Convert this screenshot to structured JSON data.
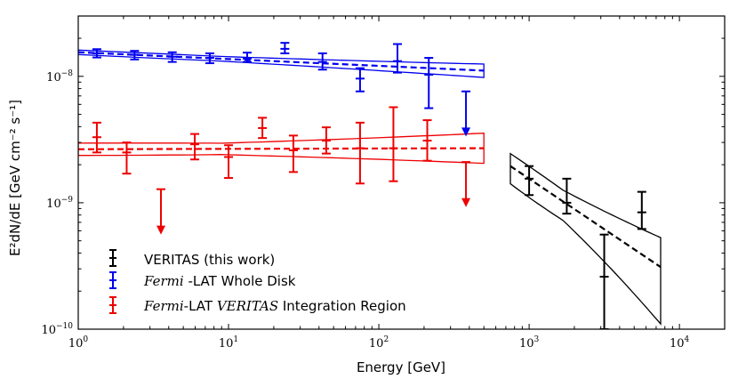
{
  "chart_data": {
    "type": "scatter",
    "xscale": "log",
    "yscale": "log",
    "xlim": [
      1,
      20000
    ],
    "ylim": [
      1e-10,
      3e-08
    ],
    "xlabel": "Energy [GeV]",
    "ylabel": "E²dN/dE [GeV cm⁻² s⁻¹]",
    "x_ticks": [
      {
        "value": 1,
        "base": "10",
        "exp": "0"
      },
      {
        "value": 10,
        "base": "10",
        "exp": "1"
      },
      {
        "value": 100,
        "base": "10",
        "exp": "2"
      },
      {
        "value": 1000,
        "base": "10",
        "exp": "3"
      },
      {
        "value": 10000,
        "base": "10",
        "exp": "4"
      }
    ],
    "y_ticks": [
      {
        "value": 1e-10,
        "base": "10",
        "exp": "−10"
      },
      {
        "value": 1e-09,
        "base": "10",
        "exp": "−9"
      },
      {
        "value": 1e-08,
        "base": "10",
        "exp": "−8"
      }
    ],
    "grid": false,
    "legend_position": "lower-left",
    "series": [
      {
        "name": "VERITAS (this work)",
        "color": "#000000",
        "points": [
          {
            "x": 1000,
            "y": 1.55e-09,
            "lo": 1.15e-09,
            "hi": 1.95e-09
          },
          {
            "x": 1780,
            "y": 1e-09,
            "lo": 8.2e-10,
            "hi": 1.55e-09
          },
          {
            "x": 3160,
            "y": 2.6e-10,
            "lo": 1e-10,
            "hi": 5.6e-10
          },
          {
            "x": 5620,
            "y": 8.4e-10,
            "lo": 6.2e-10,
            "hi": 1.22e-09
          }
        ],
        "model": {
          "x": [
            750,
            7500
          ],
          "y": [
            1.95e-09,
            3.1e-10
          ],
          "band_upper": [
            2.6e-09,
            5.3e-10
          ],
          "band_lower": [
            1.3e-09,
            1.1e-10
          ]
        }
      },
      {
        "name": "Fermi-LAT Whole Disk",
        "color": "#0000ee",
        "points": [
          {
            "x": 1.33,
            "y": 1.52e-08,
            "lo": 1.41e-08,
            "hi": 1.64e-08
          },
          {
            "x": 2.37,
            "y": 1.48e-08,
            "lo": 1.36e-08,
            "hi": 1.59e-08
          },
          {
            "x": 4.22,
            "y": 1.43e-08,
            "lo": 1.3e-08,
            "hi": 1.55e-08
          },
          {
            "x": 7.5,
            "y": 1.4e-08,
            "lo": 1.27e-08,
            "hi": 1.52e-08
          },
          {
            "x": 13.3,
            "y": 1.38e-08,
            "lo": 1.3e-08,
            "hi": 1.54e-08
          },
          {
            "x": 23.7,
            "y": 1.65e-08,
            "lo": 1.52e-08,
            "hi": 1.84e-08
          },
          {
            "x": 42.2,
            "y": 1.3e-08,
            "lo": 1.13e-08,
            "hi": 1.52e-08
          },
          {
            "x": 75,
            "y": 9.6e-09,
            "lo": 7.6e-09,
            "hi": 1.16e-08
          },
          {
            "x": 133,
            "y": 1.32e-08,
            "lo": 1.07e-08,
            "hi": 1.8e-08
          },
          {
            "x": 215,
            "y": 1.03e-08,
            "lo": 5.6e-09,
            "hi": 1.4e-08
          }
        ],
        "upper_limits": [
          {
            "x": 380,
            "y": 7.6e-09,
            "arrow_end": 3.4e-09
          }
        ],
        "model": {
          "x": [
            1,
            500
          ],
          "y": [
            1.55e-08,
            1.11e-08
          ],
          "band_upper": [
            1.63e-08,
            1.25e-08
          ],
          "band_lower": [
            1.47e-08,
            9.8e-09
          ]
        }
      },
      {
        "name": "Fermi-LAT VERITAS Integration Region",
        "name_prefix": "Fermi",
        "name_middle": "-LAT ",
        "name_italic": "VERITAS",
        "name_suffix": " Integration Region",
        "color": "#ee0000",
        "points": [
          {
            "x": 1.33,
            "y": 3.3e-09,
            "lo": 2.5e-09,
            "hi": 4.3e-09
          },
          {
            "x": 2.1,
            "y": 2.5e-09,
            "lo": 1.7e-09,
            "hi": 3e-09
          },
          {
            "x": 5.96,
            "y": 2.9e-09,
            "lo": 2.2e-09,
            "hi": 3.5e-09
          },
          {
            "x": 10.0,
            "y": 2.3e-09,
            "lo": 1.57e-09,
            "hi": 2.85e-09
          },
          {
            "x": 16.8,
            "y": 3.9e-09,
            "lo": 3.25e-09,
            "hi": 4.7e-09
          },
          {
            "x": 27.0,
            "y": 2.6e-09,
            "lo": 1.75e-09,
            "hi": 3.4e-09
          },
          {
            "x": 44.7,
            "y": 3.1e-09,
            "lo": 2.45e-09,
            "hi": 3.95e-09
          },
          {
            "x": 75,
            "y": 2.7e-09,
            "lo": 1.42e-09,
            "hi": 4.3e-09
          },
          {
            "x": 125,
            "y": 2.7e-09,
            "lo": 1.48e-09,
            "hi": 5.7e-09
          },
          {
            "x": 210,
            "y": 3.1e-09,
            "lo": 2.15e-09,
            "hi": 4.5e-09
          }
        ],
        "upper_limits": [
          {
            "x": 3.55,
            "y": 1.28e-09,
            "arrow_end": 5.7e-10
          },
          {
            "x": 380,
            "y": 2.1e-09,
            "arrow_end": 9.4e-10
          }
        ],
        "model": {
          "x": [
            1,
            500
          ],
          "y": [
            2.65e-09,
            2.7e-09
          ],
          "band_upper": [
            3.05e-09,
            3.55e-09
          ],
          "band_lower": [
            2.3e-09,
            2.05e-09
          ]
        }
      }
    ]
  }
}
